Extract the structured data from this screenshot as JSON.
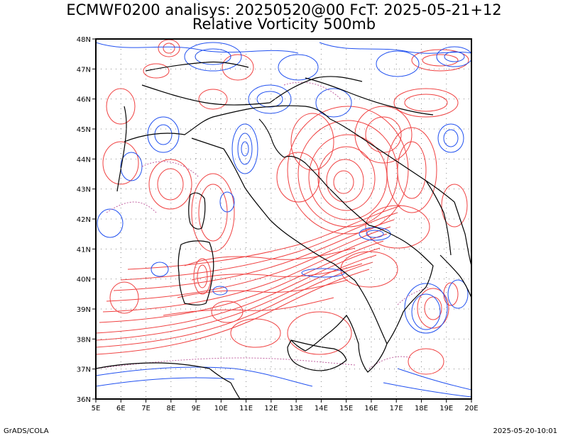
{
  "title": {
    "line1": "ECMWF0200 analisys: 20250520@00 FcT: 2025-05-21+12",
    "line2": "Relative Vorticity 500mb"
  },
  "footer": {
    "left": "GrADS/COLA",
    "right": "2025-05-20-10:01"
  },
  "map": {
    "lon_range": [
      5,
      20
    ],
    "lat_range": [
      36,
      48
    ],
    "x_ticks": [
      "5E",
      "6E",
      "7E",
      "8E",
      "9E",
      "10E",
      "11E",
      "12E",
      "13E",
      "14E",
      "15E",
      "16E",
      "17E",
      "18E",
      "19E",
      "20E"
    ],
    "y_ticks": [
      "36N",
      "37N",
      "38N",
      "39N",
      "40N",
      "41N",
      "42N",
      "43N",
      "44N",
      "45N",
      "46N",
      "47N",
      "48N"
    ],
    "colors": {
      "positive": "#f04040",
      "negative": "#2050f0",
      "zero": "#c060a0",
      "borders": "#000000",
      "grid": "#888888"
    }
  }
}
